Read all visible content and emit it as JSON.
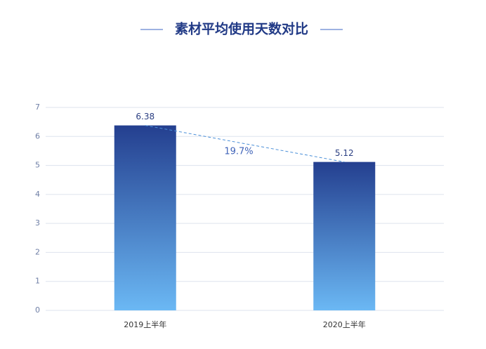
{
  "chart_data": {
    "type": "bar",
    "title": "素材平均使用天数对比",
    "categories": [
      "2019上半年",
      "2020上半年"
    ],
    "values": [
      6.38,
      5.12
    ],
    "annotation": "19.7%",
    "ylim": [
      0,
      7
    ],
    "yticks": [
      0,
      1,
      2,
      3,
      4,
      5,
      6,
      7
    ],
    "grid": true
  }
}
